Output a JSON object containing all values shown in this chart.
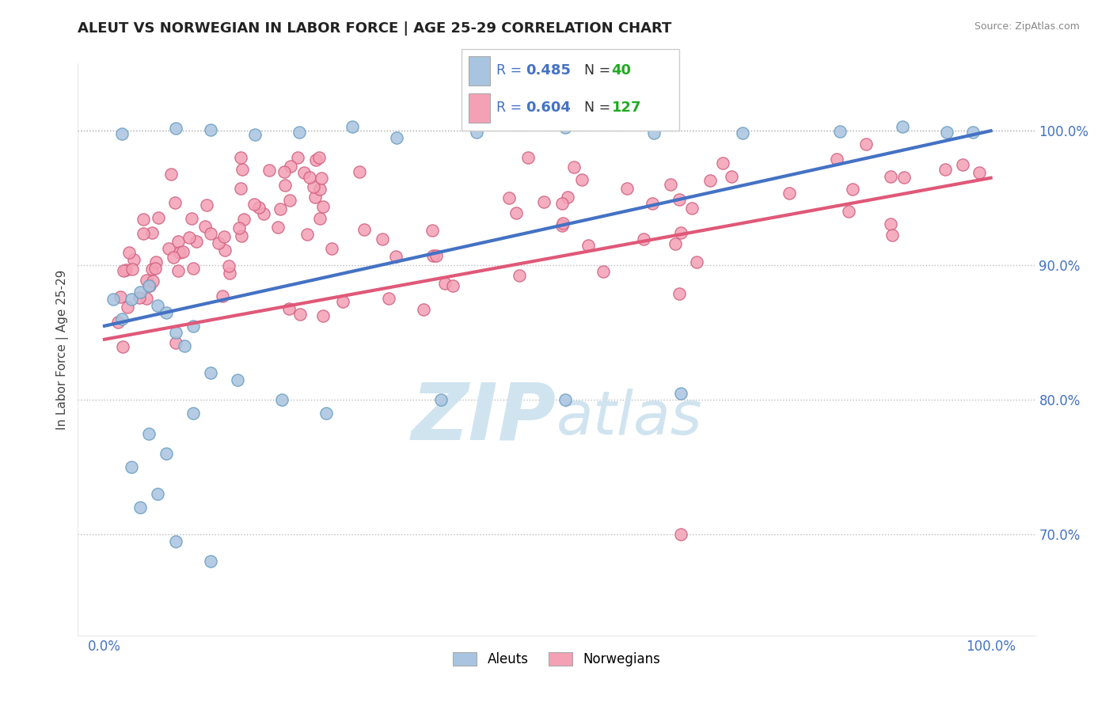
{
  "title": "ALEUT VS NORWEGIAN IN LABOR FORCE | AGE 25-29 CORRELATION CHART",
  "source_text": "Source: ZipAtlas.com",
  "ylabel": "In Labor Force | Age 25-29",
  "aleut_R": 0.485,
  "aleut_N": 40,
  "norwegian_R": 0.604,
  "norwegian_N": 127,
  "aleut_color": "#a8c4e0",
  "aleut_edge_color": "#6a9ec0",
  "norwegian_color": "#f4a0b5",
  "norwegian_edge_color": "#d06080",
  "aleut_line_color": "#4472c4",
  "norwegian_line_color": "#e05878",
  "title_color": "#222222",
  "watermark_color": "#d0e4f0",
  "xlim": [
    -0.03,
    1.05
  ],
  "ylim": [
    0.625,
    1.05
  ],
  "yticks": [
    0.7,
    0.8,
    0.9,
    1.0
  ],
  "ytick_labels": [
    "70.0%",
    "80.0%",
    "90.0%",
    "100.0%"
  ],
  "xtick_positions": [
    0.0,
    1.0
  ],
  "xtick_labels": [
    "0.0%",
    "100.0%"
  ]
}
